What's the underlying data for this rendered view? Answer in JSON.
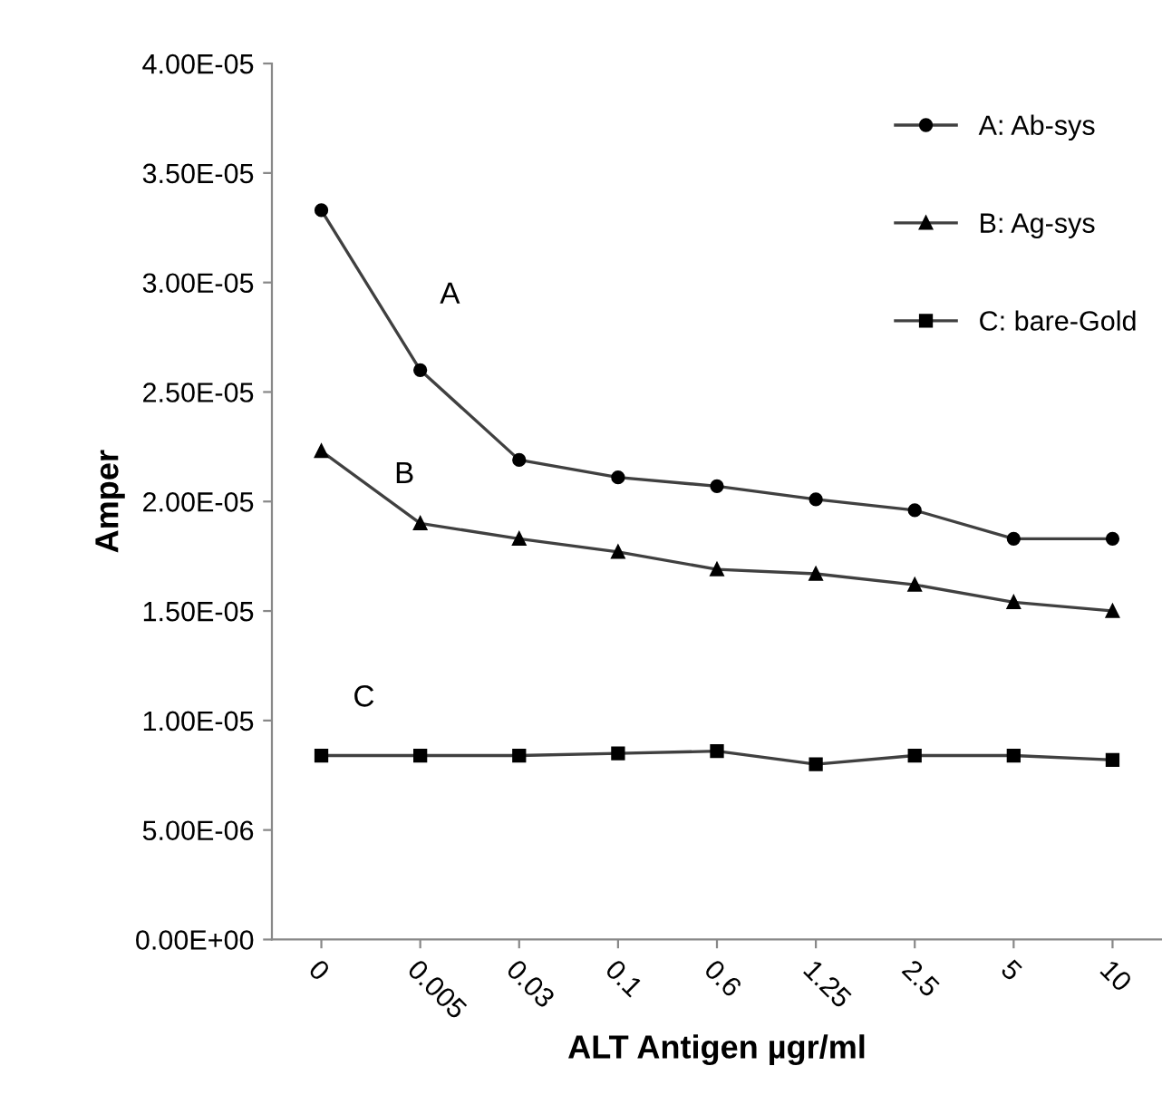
{
  "chart_data": {
    "type": "line",
    "xlabel": "ALT Antigen µgr/ml",
    "ylabel": "Amper",
    "categories": [
      "0",
      "0.005",
      "0.03",
      "0.1",
      "0.6",
      "1.25",
      "2.5",
      "5",
      "10"
    ],
    "series": [
      {
        "name": "A: Ab-sys",
        "color": "#404040",
        "marker": "circle",
        "values": [
          3.33e-05,
          2.6e-05,
          2.19e-05,
          2.11e-05,
          2.07e-05,
          2.01e-05,
          1.96e-05,
          1.83e-05,
          1.83e-05
        ]
      },
      {
        "name": "B: Ag-sys",
        "color": "#404040",
        "marker": "triangle",
        "values": [
          2.23e-05,
          1.9e-05,
          1.83e-05,
          1.77e-05,
          1.69e-05,
          1.67e-05,
          1.62e-05,
          1.54e-05,
          1.5e-05
        ]
      },
      {
        "name": "C: bare-Gold",
        "color": "#404040",
        "marker": "square",
        "values": [
          8.4e-06,
          8.4e-06,
          8.4e-06,
          8.5e-06,
          8.6e-06,
          8e-06,
          8.4e-06,
          8.4e-06,
          8.2e-06
        ]
      }
    ],
    "ylim": [
      0,
      4e-05
    ],
    "yticks": [
      {
        "value": 0,
        "label": "0.00E+00"
      },
      {
        "value": 5e-06,
        "label": "5.00E-06"
      },
      {
        "value": 1e-05,
        "label": "1.00E-05"
      },
      {
        "value": 1.5e-05,
        "label": "1.50E-05"
      },
      {
        "value": 2e-05,
        "label": "2.00E-05"
      },
      {
        "value": 2.5e-05,
        "label": "2.50E-05"
      },
      {
        "value": 3e-05,
        "label": "3.00E-05"
      },
      {
        "value": 3.5e-05,
        "label": "3.50E-05"
      },
      {
        "value": 4e-05,
        "label": "4.00E-05"
      }
    ],
    "annotations": [
      "A",
      "B",
      "C"
    ],
    "grid": false,
    "legend": "top right"
  }
}
